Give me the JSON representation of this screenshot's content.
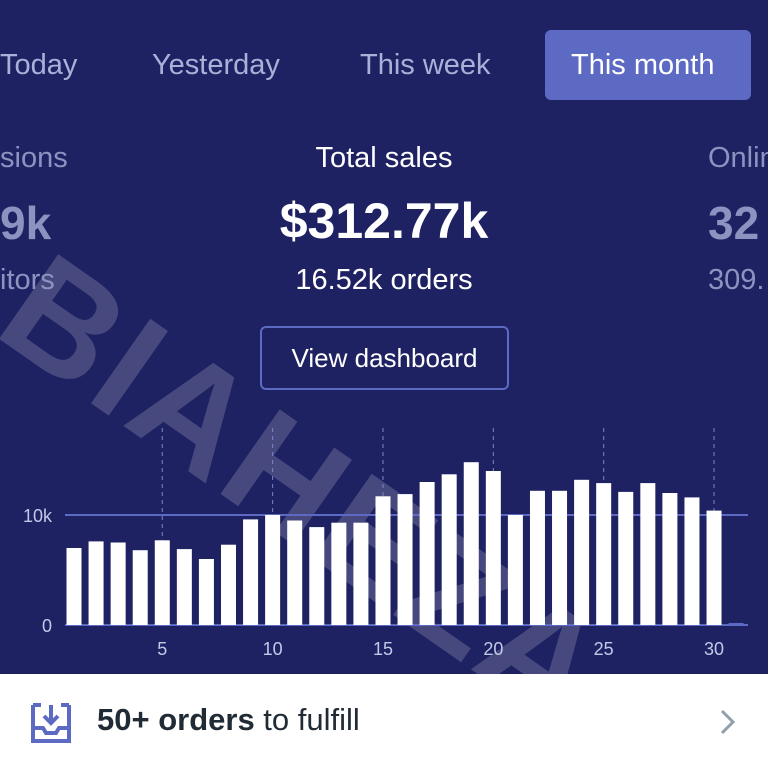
{
  "tabs": [
    {
      "label": "Today"
    },
    {
      "label": "Yesterday"
    },
    {
      "label": "This week"
    },
    {
      "label": "This month",
      "active": true
    }
  ],
  "left_stat": {
    "label": "sions",
    "value": "9k",
    "sub": "itors"
  },
  "main_stat": {
    "label": "Total sales",
    "value": "$312.77k",
    "sub": "16.52k orders"
  },
  "right_stat": {
    "label": "Onlin",
    "value": "32",
    "sub": "309."
  },
  "view_dashboard": "View dashboard",
  "watermark": "BIAHEZA",
  "chart_data": {
    "type": "bar",
    "x": [
      1,
      2,
      3,
      4,
      5,
      6,
      7,
      8,
      9,
      10,
      11,
      12,
      13,
      14,
      15,
      16,
      17,
      18,
      19,
      20,
      21,
      22,
      23,
      24,
      25,
      26,
      27,
      28,
      29,
      30,
      31
    ],
    "values": [
      7000,
      7600,
      7500,
      6800,
      7700,
      6900,
      6000,
      7300,
      9600,
      10000,
      9500,
      8900,
      9300,
      9300,
      11700,
      11900,
      13000,
      13700,
      14800,
      14000,
      10000,
      12200,
      12200,
      13200,
      12900,
      12100,
      12900,
      12000,
      11600,
      10400,
      0
    ],
    "ylim": [
      0,
      17000
    ],
    "yticks": [
      {
        "value": 0,
        "label": "0"
      },
      {
        "value": 10000,
        "label": "10k"
      }
    ],
    "xticks": [
      {
        "value": 5,
        "label": "5"
      },
      {
        "value": 10,
        "label": "10"
      },
      {
        "value": 15,
        "label": "15"
      },
      {
        "value": 20,
        "label": "20"
      },
      {
        "value": 25,
        "label": "25"
      },
      {
        "value": 30,
        "label": "30"
      }
    ],
    "xlabel": "",
    "ylabel": "",
    "title": ""
  },
  "footer": {
    "count": "50+ orders",
    "rest": " to fulfill"
  },
  "colors": {
    "background": "#1f2262",
    "accent": "#5c6ac4",
    "bar": "#ffffff"
  }
}
